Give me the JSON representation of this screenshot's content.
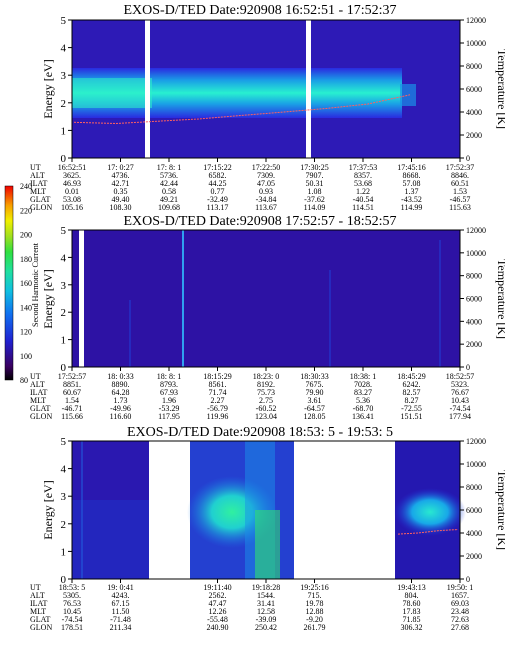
{
  "panels": [
    {
      "title": "EXOS-D/TED   Date:920908  16:52:51 - 17:52:37",
      "ylabel": "Energy [eV]",
      "y2label": "Temperature [K]",
      "yticks": [
        "0",
        "1",
        "2",
        "3",
        "4",
        "5"
      ],
      "y2ticks": [
        "0",
        "2000",
        "4000",
        "6000",
        "8000",
        "10000",
        "12000"
      ],
      "rows": [
        {
          "label": "UT",
          "values": [
            "16:52:51",
            "17: 0:27",
            "17: 8: 1",
            "17:15:22",
            "17:22:50",
            "17:30:25",
            "17:37:53",
            "17:45:16",
            "17:52:37"
          ]
        },
        {
          "label": "ALT",
          "values": [
            "3625.",
            "4736.",
            "5736.",
            "6582.",
            "7309.",
            "7907.",
            "8357.",
            "8668.",
            "8846."
          ]
        },
        {
          "label": "ILAT",
          "values": [
            "46.93",
            "42.71",
            "42.44",
            "44.25",
            "47.05",
            "50.31",
            "53.68",
            "57.08",
            "60.51"
          ]
        },
        {
          "label": "MLT",
          "values": [
            "0.01",
            "0.35",
            "0.58",
            "0.77",
            "0.93",
            "1.08",
            "1.22",
            "1.37",
            "1.53"
          ]
        },
        {
          "label": "GLAT",
          "values": [
            "53.08",
            "49.40",
            "49.21",
            "-32.49",
            "-34.84",
            "-37.62",
            "-40.54",
            "-43.52",
            "-46.57"
          ]
        },
        {
          "label": "GLON",
          "values": [
            "105.16",
            "108.30",
            "109.68",
            "113.17",
            "113.67",
            "114.09",
            "114.51",
            "114.99",
            "115.63"
          ]
        }
      ]
    },
    {
      "title": "EXOS-D/TED   Date:920908  17:52:57 - 18:52:57",
      "ylabel": "Energy [eV]",
      "y2label": "Temperature [K]",
      "yticks": [
        "0",
        "1",
        "2",
        "3",
        "4",
        "5"
      ],
      "y2ticks": [
        "0",
        "2000",
        "4000",
        "6000",
        "8000",
        "10000",
        "12000"
      ],
      "rows": [
        {
          "label": "UT",
          "values": [
            "17:52:57",
            "18: 0:33",
            "18: 8: 1",
            "18:15:29",
            "18:23: 0",
            "18:30:33",
            "18:38: 1",
            "18:45:29",
            "18:52:57"
          ]
        },
        {
          "label": "ALT",
          "values": [
            "8851.",
            "8890.",
            "8793.",
            "8561.",
            "8192.",
            "7675.",
            "7028.",
            "6242.",
            "5323."
          ]
        },
        {
          "label": "ILAT",
          "values": [
            "60.67",
            "64.28",
            "67.93",
            "71.74",
            "75.73",
            "79.90",
            "83.27",
            "82.57",
            "76.67"
          ]
        },
        {
          "label": "MLT",
          "values": [
            "1.54",
            "1.73",
            "1.96",
            "2.27",
            "2.75",
            "3.61",
            "5.36",
            "8.27",
            "10.43"
          ]
        },
        {
          "label": "GLAT",
          "values": [
            "-46.71",
            "-49.96",
            "-53.29",
            "-56.79",
            "-60.52",
            "-64.57",
            "-68.70",
            "-72.55",
            "-74.54"
          ]
        },
        {
          "label": "GLON",
          "values": [
            "115.66",
            "116.60",
            "117.95",
            "119.96",
            "123.04",
            "128.05",
            "136.41",
            "151.51",
            "177.94"
          ]
        }
      ]
    },
    {
      "title": "EXOS-D/TED   Date:920908  18:53: 5 - 19:53: 5",
      "ylabel": "Energy [eV]",
      "y2label": "Temperature [K]",
      "yticks": [
        "0",
        "1",
        "2",
        "3",
        "4",
        "5"
      ],
      "y2ticks": [
        "0",
        "2000",
        "4000",
        "6000",
        "8000",
        "10000",
        "12000"
      ],
      "rows": [
        {
          "label": "UT",
          "values": [
            "18:53: 5",
            "19: 0:41",
            "",
            "19:11:40",
            "19:18:28",
            "19:25:16",
            "",
            "19:43:13",
            "19:50: 1"
          ]
        },
        {
          "label": "ALT",
          "values": [
            "5305.",
            "4243.",
            "",
            "2562.",
            "1544.",
            "715.",
            "",
            "804.",
            "1657."
          ]
        },
        {
          "label": "ILAT",
          "values": [
            "76.53",
            "67.15",
            "",
            "47.47",
            "31.41",
            "19.78",
            "",
            "78.60",
            "69.03"
          ]
        },
        {
          "label": "MLT",
          "values": [
            "10.45",
            "11.50",
            "",
            "12.26",
            "12.58",
            "12.88",
            "",
            "17.83",
            "23.48"
          ]
        },
        {
          "label": "GLAT",
          "values": [
            "-74.54",
            "-71.48",
            "",
            "-55.48",
            "-39.09",
            "-9.20",
            "",
            "71.85",
            "72.63"
          ]
        },
        {
          "label": "GLON",
          "values": [
            "178.51",
            "211.34",
            "",
            "240.90",
            "250.42",
            "261.79",
            "",
            "306.32",
            "27.68"
          ]
        }
      ]
    }
  ],
  "colorbar": {
    "label": "Second Harmonic Current",
    "ticks": [
      "80",
      "100",
      "120",
      "140",
      "160",
      "180",
      "200",
      "220",
      "240"
    ]
  },
  "chart_data": [
    {
      "type": "heatmap",
      "title": "EXOS-D/TED   Date:920908  16:52:51 - 17:52:37",
      "xlabel": "UT",
      "ylabel": "Energy [eV]",
      "y2label": "Temperature [K]",
      "ylim": [
        0,
        5
      ],
      "y2lim": [
        0,
        12000
      ],
      "zlabel": "Second Harmonic Current",
      "zlim": [
        80,
        240
      ],
      "x": [
        "16:52:51",
        "17: 0:27",
        "17: 8: 1",
        "17:15:22",
        "17:22:50",
        "17:30:25",
        "17:37:53",
        "17:45:16",
        "17:52:37"
      ],
      "data_gaps_ut": [
        "17: 3",
        "17:30"
      ],
      "band_center_energy_ev": [
        2.3,
        2.35,
        2.2,
        2.2,
        2.25,
        2.25,
        2.2,
        2.15,
        2.1
      ],
      "temperature_trace_k": [
        3100,
        3000,
        3200,
        3400,
        3700,
        4000,
        4300,
        4700,
        5500
      ]
    },
    {
      "type": "heatmap",
      "title": "EXOS-D/TED   Date:920908  17:52:57 - 18:52:57",
      "xlabel": "UT",
      "ylabel": "Energy [eV]",
      "y2label": "Temperature [K]",
      "ylim": [
        0,
        5
      ],
      "y2lim": [
        0,
        12000
      ],
      "zlabel": "Second Harmonic Current",
      "zlim": [
        80,
        240
      ],
      "x": [
        "17:52:57",
        "18: 0:33",
        "18: 8: 1",
        "18:15:29",
        "18:23: 0",
        "18:30:33",
        "18:38: 1",
        "18:45:29",
        "18:52:57"
      ],
      "data_gaps_ut": [
        "17:54"
      ]
    },
    {
      "type": "heatmap",
      "title": "EXOS-D/TED   Date:920908  18:53: 5 - 19:53: 5",
      "xlabel": "UT",
      "ylabel": "Energy [eV]",
      "y2label": "Temperature [K]",
      "ylim": [
        0,
        5
      ],
      "y2lim": [
        0,
        12000
      ],
      "zlabel": "Second Harmonic Current",
      "zlim": [
        80,
        240
      ],
      "x": [
        "18:53: 5",
        "19: 0:41",
        "",
        "19:11:40",
        "19:18:28",
        "19:25:16",
        "",
        "19:43:13",
        "19:50: 1"
      ],
      "data_gaps_ut": [
        "19:03-19:10",
        "19:27-19:44"
      ],
      "temperature_trace_k": [
        3900,
        4000,
        4200,
        4300
      ]
    }
  ]
}
